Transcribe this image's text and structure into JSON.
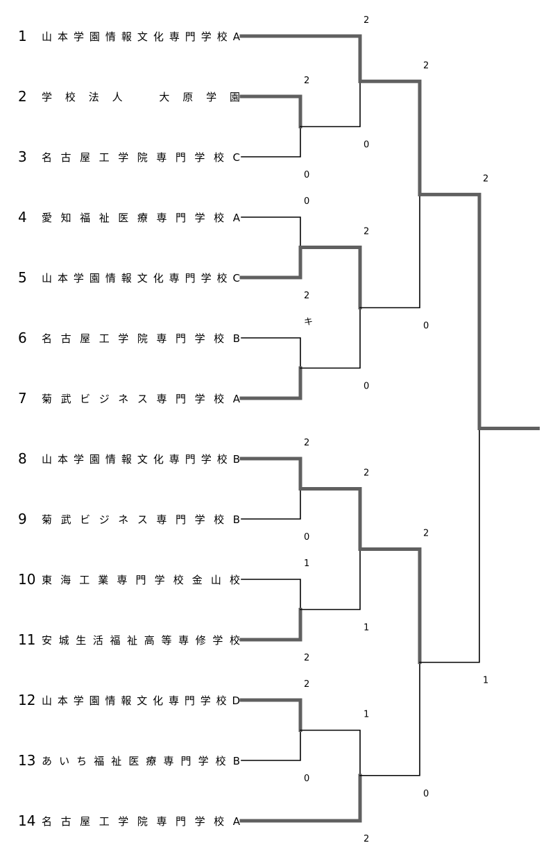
{
  "colors": {
    "winner_line": "#606060",
    "loser_line": "#000000",
    "text": "#000000"
  },
  "teams": [
    {
      "seed": "1",
      "name": "山本学園情報文化専門学校A"
    },
    {
      "seed": "2",
      "name": "学校法人　大原学園"
    },
    {
      "seed": "3",
      "name": "名古屋工学院専門学校C"
    },
    {
      "seed": "4",
      "name": "愛知福祉医療専門学校A"
    },
    {
      "seed": "5",
      "name": "山本学園情報文化専門学校C"
    },
    {
      "seed": "6",
      "name": "名古屋工学院専門学校B"
    },
    {
      "seed": "7",
      "name": "菊武ビジネス専門学校A"
    },
    {
      "seed": "8",
      "name": "山本学園情報文化専門学校B"
    },
    {
      "seed": "9",
      "name": "菊武ビジネス専門学校B"
    },
    {
      "seed": "10",
      "name": "東海工業専門学校金山校"
    },
    {
      "seed": "11",
      "name": "安城生活福祉高等専修学校"
    },
    {
      "seed": "12",
      "name": "山本学園情報文化専門学校D"
    },
    {
      "seed": "13",
      "name": "あいち福祉医療専門学校B"
    },
    {
      "seed": "14",
      "name": "名古屋工学院専門学校A"
    }
  ],
  "matches": [
    {
      "id": "m1",
      "round": 1,
      "top": "t2",
      "bottom": "t3",
      "top_score": "2",
      "bottom_score": "0",
      "winner": "top"
    },
    {
      "id": "m2",
      "round": 1,
      "top": "t4",
      "bottom": "t5",
      "top_score": "0",
      "bottom_score": "2",
      "winner": "bottom"
    },
    {
      "id": "m3",
      "round": 1,
      "top": "t6",
      "bottom": "t7",
      "top_score": "キ",
      "bottom_score": "",
      "winner": "bottom"
    },
    {
      "id": "m4",
      "round": 1,
      "top": "t8",
      "bottom": "t9",
      "top_score": "2",
      "bottom_score": "0",
      "winner": "top"
    },
    {
      "id": "m5",
      "round": 1,
      "top": "t10",
      "bottom": "t11",
      "top_score": "1",
      "bottom_score": "2",
      "winner": "bottom"
    },
    {
      "id": "m6",
      "round": 1,
      "top": "t12",
      "bottom": "t13",
      "top_score": "2",
      "bottom_score": "0",
      "winner": "top"
    },
    {
      "id": "m7",
      "round": 2,
      "top": "t1",
      "bottom": "m1",
      "top_score": "2",
      "bottom_score": "0",
      "winner": "top"
    },
    {
      "id": "m8",
      "round": 2,
      "top": "m2",
      "bottom": "m3",
      "top_score": "2",
      "bottom_score": "0",
      "winner": "top"
    },
    {
      "id": "m9",
      "round": 2,
      "top": "m4",
      "bottom": "m5",
      "top_score": "2",
      "bottom_score": "1",
      "winner": "top"
    },
    {
      "id": "m10",
      "round": 2,
      "top": "m6",
      "bottom": "t14",
      "top_score": "1",
      "bottom_score": "2",
      "winner": "bottom"
    },
    {
      "id": "m11",
      "round": 3,
      "top": "m7",
      "bottom": "m8",
      "top_score": "2",
      "bottom_score": "0",
      "winner": "top"
    },
    {
      "id": "m12",
      "round": 3,
      "top": "m9",
      "bottom": "m10",
      "top_score": "2",
      "bottom_score": "0",
      "winner": "top"
    },
    {
      "id": "m13",
      "round": 4,
      "top": "m11",
      "bottom": "m12",
      "top_score": "2",
      "bottom_score": "1",
      "winner": "top"
    }
  ]
}
